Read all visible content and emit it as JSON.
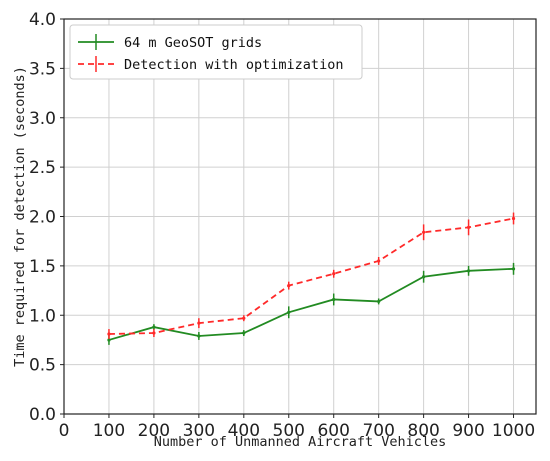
{
  "chart_data": {
    "type": "line",
    "title": "",
    "xlabel": "Number of Unmanned Aircraft Vehicles",
    "ylabel": "Time required for detection (seconds)",
    "xlim": [
      0,
      1050
    ],
    "ylim": [
      0.0,
      4.0
    ],
    "x_ticks": [
      "0",
      "100",
      "200",
      "300",
      "400",
      "500",
      "600",
      "700",
      "800",
      "900",
      "1000"
    ],
    "y_ticks": [
      "0.0",
      "0.5",
      "1.0",
      "1.5",
      "2.0",
      "2.5",
      "3.0",
      "3.5",
      "4.0"
    ],
    "grid": true,
    "legend_position": "top-left",
    "x": [
      100,
      200,
      300,
      400,
      500,
      600,
      700,
      800,
      900,
      1000
    ],
    "series": [
      {
        "name": "64 m GeoSOT grids",
        "color": "#228B22",
        "style": "solid",
        "values": [
          0.75,
          0.88,
          0.79,
          0.82,
          1.03,
          1.16,
          1.14,
          1.39,
          1.45,
          1.47
        ],
        "errors": [
          0.05,
          0.03,
          0.04,
          0.03,
          0.06,
          0.06,
          0.03,
          0.06,
          0.05,
          0.06
        ]
      },
      {
        "name": "Detection with optimization",
        "color": "#FF2A2A",
        "style": "dashed",
        "values": [
          0.81,
          0.82,
          0.92,
          0.97,
          1.3,
          1.42,
          1.55,
          1.84,
          1.89,
          1.98
        ],
        "errors": [
          0.05,
          0.04,
          0.05,
          0.03,
          0.04,
          0.04,
          0.04,
          0.08,
          0.08,
          0.06
        ]
      }
    ]
  }
}
